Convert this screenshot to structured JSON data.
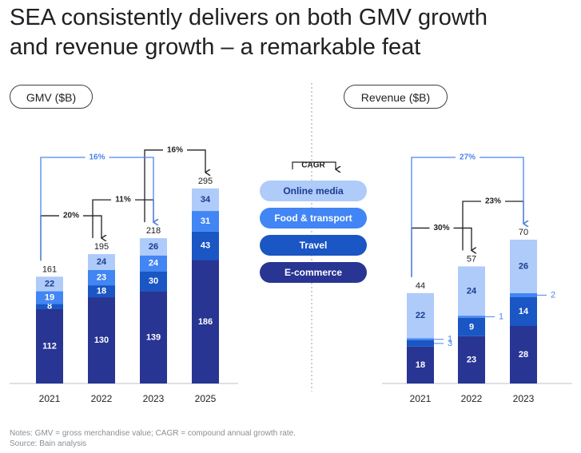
{
  "title_line1": "SEA consistently delivers on both GMV growth",
  "title_line2": "and revenue growth – a remarkable feat",
  "gmv_pill": "GMV ($B)",
  "revenue_pill": "Revenue ($B)",
  "legend": {
    "header": "CAGR",
    "items": [
      {
        "label": "Online media",
        "color": "#aecbfa",
        "text_color": "#1a3c8e"
      },
      {
        "label": "Food & transport",
        "color": "#4285f4",
        "text_color": "#ffffff"
      },
      {
        "label": "Travel",
        "color": "#1a56c4",
        "text_color": "#ffffff"
      },
      {
        "label": "E-commerce",
        "color": "#283593",
        "text_color": "#ffffff"
      }
    ]
  },
  "notes": "Notes: GMV = gross merchandise value; CAGR = compound annual growth rate.",
  "source": "Source: Bain analysis",
  "chart_data": [
    {
      "type": "bar",
      "stacked": true,
      "title": "GMV ($B)",
      "categories": [
        "2021",
        "2022",
        "2023",
        "2025"
      ],
      "series": [
        {
          "name": "E-commerce",
          "values": [
            112,
            130,
            139,
            186
          ]
        },
        {
          "name": "Travel",
          "values": [
            8,
            18,
            30,
            43
          ]
        },
        {
          "name": "Food & transport",
          "values": [
            19,
            23,
            24,
            31
          ]
        },
        {
          "name": "Online media",
          "values": [
            22,
            24,
            26,
            34
          ]
        }
      ],
      "totals": [
        161,
        195,
        218,
        295
      ],
      "cagr_annotations": [
        {
          "from": "2021",
          "to": "2022",
          "label": "20%",
          "style": "black"
        },
        {
          "from": "2022",
          "to": "2023",
          "label": "11%",
          "style": "black"
        },
        {
          "from": "2023",
          "to": "2025",
          "label": "16%",
          "style": "black"
        },
        {
          "from": "2021",
          "to": "2023",
          "label": "16%",
          "style": "blue"
        }
      ]
    },
    {
      "type": "bar",
      "stacked": true,
      "title": "Revenue ($B)",
      "categories": [
        "2021",
        "2022",
        "2023"
      ],
      "series": [
        {
          "name": "E-commerce",
          "values": [
            18,
            23,
            28
          ]
        },
        {
          "name": "Travel",
          "values": [
            3,
            9,
            14
          ]
        },
        {
          "name": "Food & transport",
          "values": [
            1,
            1,
            2
          ]
        },
        {
          "name": "Online media",
          "values": [
            22,
            24,
            26
          ]
        }
      ],
      "totals": [
        44,
        57,
        70
      ],
      "cagr_annotations": [
        {
          "from": "2021",
          "to": "2022",
          "label": "30%",
          "style": "black"
        },
        {
          "from": "2022",
          "to": "2023",
          "label": "23%",
          "style": "black"
        },
        {
          "from": "2021",
          "to": "2023",
          "label": "27%",
          "style": "blue"
        }
      ]
    }
  ]
}
